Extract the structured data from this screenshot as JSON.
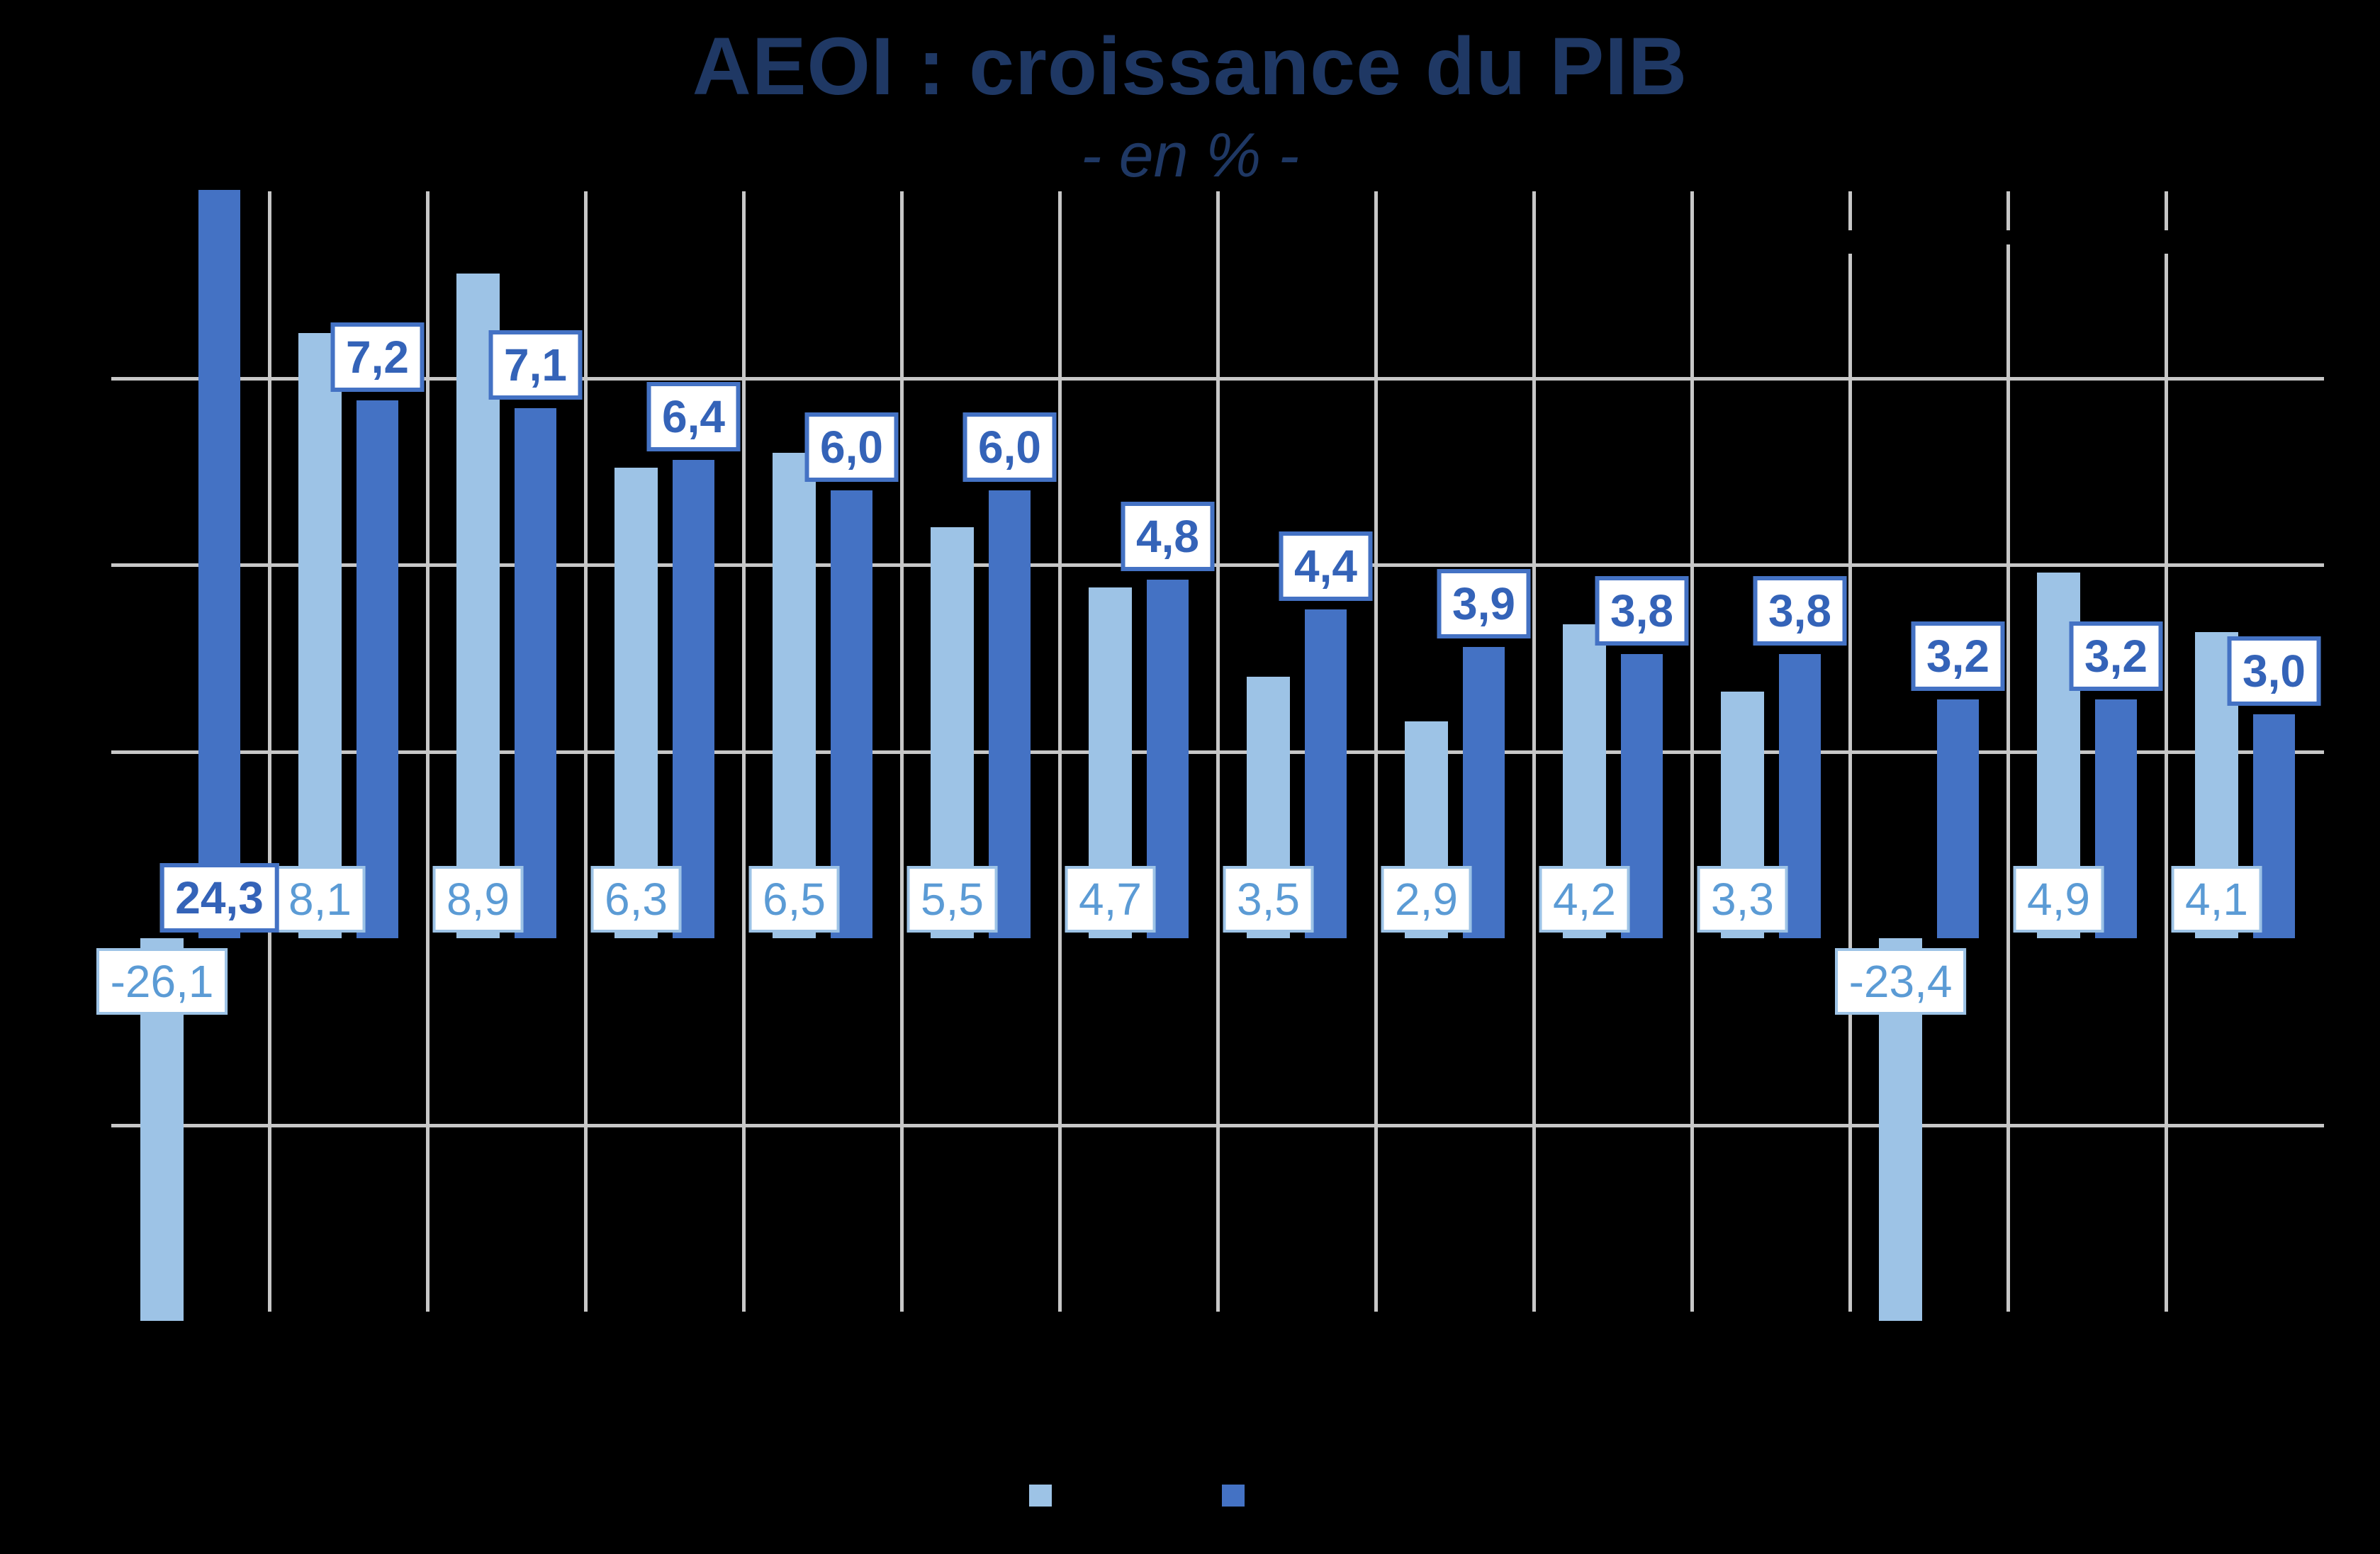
{
  "title": "AEOI : croissance du PIB",
  "subtitle": "- en % -",
  "colors": {
    "background": "#000000",
    "title_text": "#1F3864",
    "gridline": "#C7C7C7",
    "series_light_fill": "#9DC3E6",
    "series_dark_fill": "#4472C4",
    "label_light_text": "#5B9BD5",
    "label_light_border": "#9DC3E6",
    "label_dark_text": "#3463B8",
    "label_dark_border": "#4472C4",
    "label_box_fill": "#FFFFFF"
  },
  "chart_data": {
    "type": "bar",
    "title": "AEOI : croissance du PIB",
    "subtitle": "- en % -",
    "unit": "%",
    "xlabel": "",
    "ylabel": "",
    "categories": [
      "",
      "",
      "",
      "",
      "",
      "",
      "",
      "",
      "",
      "",
      "",
      "",
      "",
      ""
    ],
    "categories_note_visible": false,
    "series": [
      {
        "name": "",
        "color": "#9DC3E6",
        "values": [
          -26.1,
          8.1,
          8.9,
          6.3,
          6.5,
          5.5,
          4.7,
          3.5,
          2.9,
          4.2,
          3.3,
          -23.4,
          4.9,
          4.1
        ],
        "labels": [
          "-26,1",
          "8,1",
          "8,9",
          "6,3",
          "6,5",
          "5,5",
          "4,7",
          "3,5",
          "2,9",
          "4,2",
          "3,3",
          "-23,4",
          "4,9",
          "4,1"
        ]
      },
      {
        "name": "",
        "color": "#4472C4",
        "values": [
          24.3,
          7.2,
          7.1,
          6.4,
          6.0,
          6.0,
          4.8,
          4.4,
          3.9,
          3.8,
          3.8,
          3.2,
          3.2,
          3.0
        ],
        "labels": [
          "24,3",
          "7,2",
          "7,1",
          "6,4",
          "6,0",
          "6,0",
          "4,8",
          "4,4",
          "3,9",
          "3,8",
          "3,8",
          "3,2",
          "3,2",
          "3,0"
        ]
      }
    ],
    "ylim": [
      -5,
      10
    ],
    "gridline_step": 2.5,
    "grid": true,
    "y_tick_labels_visible": false,
    "legend_position": "bottom",
    "legend": [
      {
        "swatch_color": "#9DC3E6",
        "label": ""
      },
      {
        "swatch_color": "#4472C4",
        "label": ""
      }
    ]
  }
}
